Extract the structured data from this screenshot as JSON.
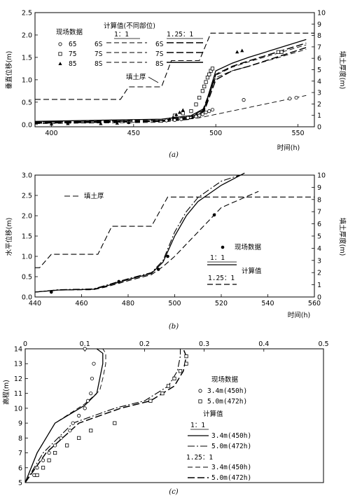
{
  "chart_data": [
    {
      "type": "line",
      "panel": "(a)",
      "xlabel": "时间(h)",
      "ylabel": "垂直位移(m)",
      "y2label": "填土厚度(m)",
      "xlim": [
        390,
        560
      ],
      "ylim": [
        -0.05,
        2.5
      ],
      "y2lim": [
        0,
        10
      ],
      "xticks": [
        "400",
        "450",
        "500",
        "550"
      ],
      "yticks": [
        "0.0",
        "0.5",
        "1.0",
        "1.5",
        "2.0",
        "2.5"
      ],
      "y2ticks": [
        "0",
        "1",
        "2",
        "3",
        "4",
        "5",
        "6",
        "7",
        "8",
        "9",
        "10"
      ],
      "legend_measured_title": "现场数据",
      "legend_calc_title": "计算值(不同部位)",
      "legend_ratio_a": "1：1",
      "legend_ratio_b": "1.25：1",
      "legend_fill": "填土厚",
      "measured": [
        {
          "name": "65",
          "marker": "circle",
          "x": [
            447,
            450,
            470,
            475,
            479,
            483,
            488,
            490,
            492,
            494,
            496,
            498,
            517,
            545,
            549
          ],
          "y": [
            0.05,
            0.08,
            0.09,
            0.1,
            0.12,
            0.15,
            0.18,
            0.2,
            0.23,
            0.27,
            0.3,
            0.33,
            0.55,
            0.58,
            0.6
          ]
        },
        {
          "name": "75",
          "marker": "square",
          "x": [
            475,
            480,
            485,
            488,
            490,
            492,
            493,
            494,
            495,
            496,
            497,
            498,
            538,
            540
          ],
          "y": [
            0.2,
            0.25,
            0.3,
            0.45,
            0.6,
            0.75,
            0.85,
            0.95,
            1.05,
            1.12,
            1.2,
            1.25,
            1.62,
            1.62
          ]
        },
        {
          "name": "85",
          "marker": "triangle",
          "x": [
            400,
            410,
            430,
            440,
            447,
            472,
            474,
            476,
            478,
            480,
            513,
            516
          ],
          "y": [
            0.01,
            0.02,
            0.02,
            0.03,
            0.05,
            0.12,
            0.16,
            0.22,
            0.27,
            0.32,
            1.62,
            1.65
          ]
        }
      ],
      "computed": [
        {
          "name": "6S 1:1",
          "style": "dash-light",
          "x": [
            390,
            467,
            490,
            555
          ],
          "y": [
            0.02,
            0.05,
            0.15,
            0.65
          ]
        },
        {
          "name": "7S 1:1",
          "style": "dash-light",
          "x": [
            390,
            467,
            485,
            492,
            500,
            510,
            520,
            555
          ],
          "y": [
            0.04,
            0.08,
            0.14,
            0.28,
            1.05,
            1.2,
            1.3,
            1.68
          ]
        },
        {
          "name": "8S 1:1",
          "style": "dash-light",
          "x": [
            390,
            467,
            485,
            492,
            500,
            510,
            520,
            555
          ],
          "y": [
            0.06,
            0.1,
            0.18,
            0.32,
            1.1,
            1.28,
            1.4,
            1.78
          ]
        },
        {
          "name": "6S 1.25:1",
          "style": "dash-heavy",
          "x": [
            390,
            467,
            485,
            493,
            500,
            510,
            520,
            555
          ],
          "y": [
            0.03,
            0.07,
            0.12,
            0.3,
            1.0,
            1.2,
            1.3,
            1.72
          ]
        },
        {
          "name": "7S 1.25:1",
          "style": "dash-heavy",
          "x": [
            390,
            467,
            485,
            493,
            500,
            510,
            520,
            555
          ],
          "y": [
            0.05,
            0.09,
            0.16,
            0.33,
            1.12,
            1.3,
            1.42,
            1.82
          ]
        },
        {
          "name": "8S 1.25:1",
          "style": "solid",
          "x": [
            390,
            467,
            485,
            493,
            500,
            510,
            520,
            555
          ],
          "y": [
            0.07,
            0.12,
            0.2,
            0.36,
            1.2,
            1.37,
            1.5,
            1.9
          ]
        }
      ],
      "fill_thickness": {
        "x": [
          390,
          442,
          447,
          467,
          473,
          490,
          497,
          560
        ],
        "y2": [
          2.4,
          2.4,
          3.5,
          3.5,
          5.8,
          5.8,
          8.2,
          8.2
        ]
      }
    },
    {
      "type": "line",
      "panel": "(b)",
      "xlabel": "时间(h)",
      "ylabel": "水平位移(m)",
      "y2label": "填土厚度(m)",
      "xlim": [
        440,
        560
      ],
      "ylim": [
        0,
        3.0
      ],
      "y2lim": [
        0,
        10
      ],
      "xticks": [
        "440",
        "460",
        "480",
        "500",
        "520",
        "540",
        "560"
      ],
      "yticks": [
        "0.0",
        "0.5",
        "1.0",
        "1.5",
        "2.0",
        "2.5",
        "3.0"
      ],
      "y2ticks": [
        "0",
        "1",
        "2",
        "3",
        "4",
        "5",
        "6",
        "7",
        "8",
        "9",
        "10"
      ],
      "legend_fill": "填土厚",
      "legend_measured": "现场数据",
      "legend_ratio_a": "1：1",
      "legend_ratio_b": "1.25：1",
      "legend_calc": "计算值",
      "measured": {
        "x": [
          447,
          476,
          493,
          497,
          517
        ],
        "y": [
          0.12,
          0.38,
          0.68,
          1.0,
          2.02
        ]
      },
      "computed": [
        {
          "name": "1:1",
          "style": "dashdot",
          "x": [
            440,
            450,
            465,
            470,
            480,
            490,
            495,
            500,
            505,
            510,
            520,
            528
          ],
          "y": [
            0.12,
            0.18,
            0.2,
            0.28,
            0.45,
            0.6,
            0.9,
            1.6,
            2.1,
            2.45,
            2.85,
            3.0
          ]
        },
        {
          "name": "1:1 solid",
          "style": "solid",
          "x": [
            440,
            450,
            465,
            470,
            480,
            490,
            495,
            500,
            505,
            510,
            520,
            530
          ],
          "y": [
            0.12,
            0.17,
            0.19,
            0.26,
            0.43,
            0.58,
            0.86,
            1.5,
            2.0,
            2.35,
            2.75,
            3.05
          ]
        },
        {
          "name": "1.25:1",
          "style": "dash",
          "x": [
            440,
            450,
            465,
            470,
            480,
            490,
            495,
            500,
            510,
            520,
            536
          ],
          "y": [
            0.12,
            0.17,
            0.18,
            0.24,
            0.4,
            0.55,
            0.75,
            1.0,
            1.6,
            2.2,
            2.6
          ]
        }
      ],
      "fill_thickness": {
        "x": [
          440,
          442,
          447,
          467,
          473,
          490,
          497,
          560
        ],
        "y2": [
          2.4,
          2.4,
          3.5,
          3.5,
          5.8,
          5.8,
          8.2,
          8.2
        ]
      }
    },
    {
      "type": "line",
      "panel": "(c)",
      "ylabel": "高程(m)",
      "xlim": [
        0,
        0.5
      ],
      "ylim": [
        5,
        14
      ],
      "xticks": [
        "0",
        "0.1",
        "0.2",
        "0.3",
        "0.4",
        "0.5"
      ],
      "yticks": [
        "5",
        "6",
        "7",
        "8",
        "9",
        "10",
        "11",
        "12",
        "13",
        "14"
      ],
      "legend_measured": "现场数据",
      "legend_m1": "3.4m(450h)",
      "legend_m2": "5.0m(472h)",
      "legend_calc": "计算值",
      "legend_ratio_a": "1：1",
      "legend_ratio_b": "1.25：1",
      "legend_c1": "3.4m(450h)",
      "legend_c2": "5.0m(472h)",
      "measured": [
        {
          "name": "3.4m(450h)",
          "marker": "circle",
          "x": [
            0.015,
            0.02,
            0.03,
            0.04,
            0.05,
            0.06,
            0.075,
            0.08,
            0.09,
            0.1,
            0.105,
            0.11,
            0.112,
            0.115,
            0.1
          ],
          "y": [
            5.5,
            6,
            6.5,
            7,
            7.5,
            8,
            8.5,
            9,
            9.5,
            10,
            10.5,
            11,
            12,
            13,
            14
          ]
        },
        {
          "name": "5.0m(472h)",
          "marker": "square",
          "x": [
            0.02,
            0.03,
            0.04,
            0.05,
            0.07,
            0.09,
            0.11,
            0.15,
            0.21,
            0.23,
            0.24,
            0.25,
            0.26,
            0.27,
            0.27
          ],
          "y": [
            5.5,
            6,
            6.5,
            7,
            7.5,
            8,
            8.5,
            9,
            10.5,
            11,
            11.5,
            12,
            12.5,
            13,
            13.5
          ]
        }
      ],
      "computed": [
        {
          "name": "1:1 3.4m(450h)",
          "style": "solid",
          "x": [
            0.0,
            0.02,
            0.05,
            0.1,
            0.12,
            0.125,
            0.13,
            0.13,
            0.12
          ],
          "y": [
            5,
            7,
            9,
            10.2,
            11,
            12,
            13,
            13.7,
            14
          ]
        },
        {
          "name": "1:1 5.0m(472h)",
          "style": "dashdot",
          "x": [
            0.0,
            0.03,
            0.08,
            0.15,
            0.2,
            0.24,
            0.255,
            0.26,
            0.26
          ],
          "y": [
            5,
            7,
            9,
            10,
            10.5,
            11.5,
            12.5,
            13.5,
            14
          ]
        },
        {
          "name": "1.25:1 3.4m(450h)",
          "style": "dash-light",
          "x": [
            0.0,
            0.02,
            0.05,
            0.1,
            0.125,
            0.13,
            0.135,
            0.135,
            0.13
          ],
          "y": [
            5,
            7,
            9,
            10.3,
            11.2,
            12,
            13,
            13.7,
            14
          ]
        },
        {
          "name": "1.25:1 5.0m(472h)",
          "style": "dash-heavy",
          "x": [
            0.0,
            0.035,
            0.09,
            0.16,
            0.21,
            0.25,
            0.265,
            0.27,
            0.265
          ],
          "y": [
            5,
            7,
            9,
            10,
            10.5,
            11.5,
            12.5,
            13.5,
            14
          ]
        }
      ]
    }
  ]
}
